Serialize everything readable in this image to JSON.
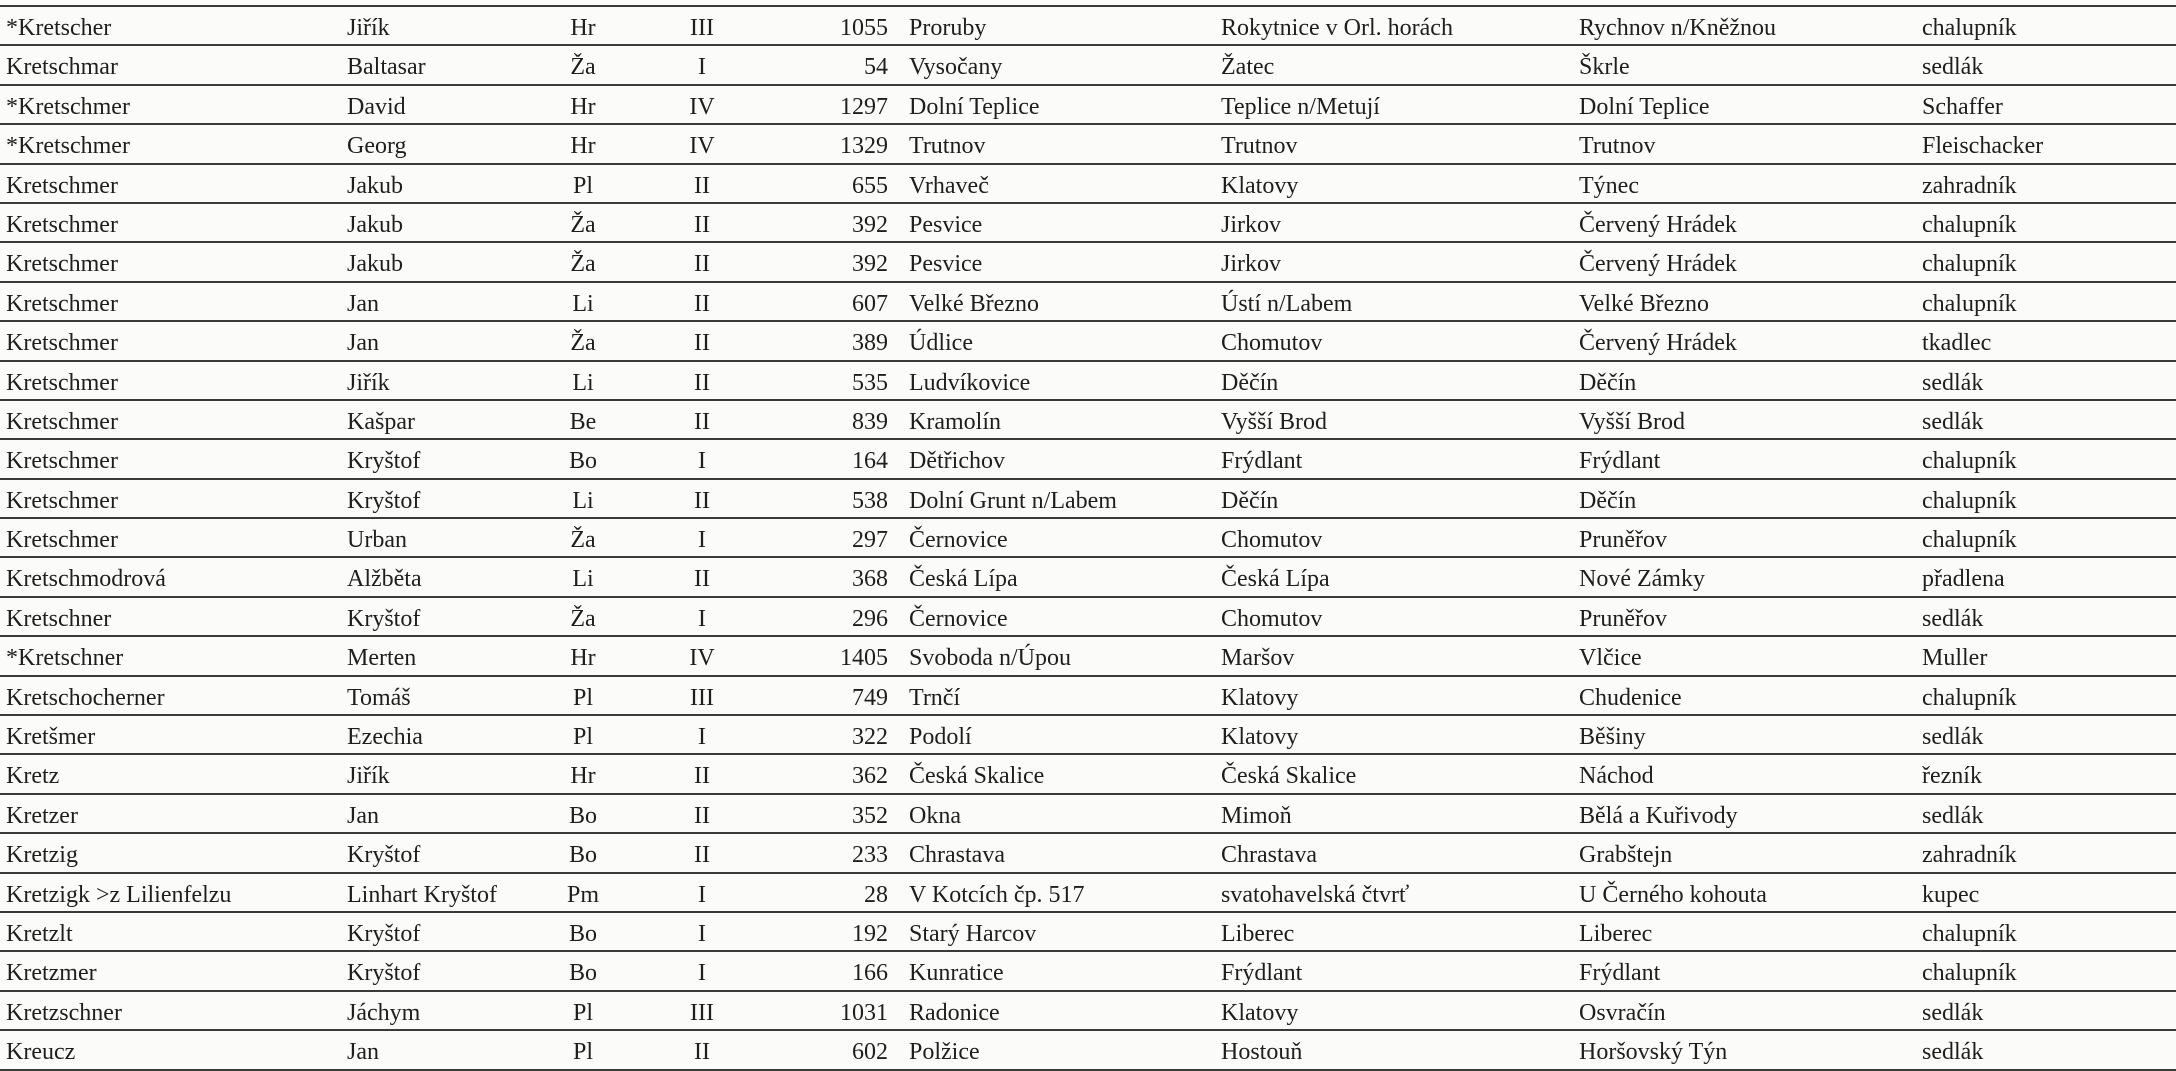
{
  "rows": [
    [
      "*Kretscher",
      "Jiřík",
      "Hr",
      "III",
      "1055",
      "Proruby",
      "Rokytnice v Orl. horách",
      "Rychnov n/Kněžnou",
      "chalupník"
    ],
    [
      "Kretschmar",
      "Baltasar",
      "Ža",
      "I",
      "54",
      "Vysočany",
      "Žatec",
      "Škrle",
      "sedlák"
    ],
    [
      "*Kretschmer",
      "David",
      "Hr",
      "IV",
      "1297",
      "Dolní Teplice",
      "Teplice n/Metují",
      "Dolní Teplice",
      "Schaffer"
    ],
    [
      "*Kretschmer",
      "Georg",
      "Hr",
      "IV",
      "1329",
      "Trutnov",
      "Trutnov",
      "Trutnov",
      "Fleischacker"
    ],
    [
      "Kretschmer",
      "Jakub",
      "Pl",
      "II",
      "655",
      "Vrhaveč",
      "Klatovy",
      "Týnec",
      "zahradník"
    ],
    [
      "Kretschmer",
      "Jakub",
      "Ža",
      "II",
      "392",
      "Pesvice",
      "Jirkov",
      "Červený Hrádek",
      "chalupník"
    ],
    [
      "Kretschmer",
      "Jakub",
      "Ža",
      "II",
      "392",
      "Pesvice",
      "Jirkov",
      "Červený Hrádek",
      "chalupník"
    ],
    [
      "Kretschmer",
      "Jan",
      "Li",
      "II",
      "607",
      "Velké Březno",
      "Ústí n/Labem",
      "Velké Březno",
      "chalupník"
    ],
    [
      "Kretschmer",
      "Jan",
      "Ža",
      "II",
      "389",
      "Údlice",
      "Chomutov",
      "Červený Hrádek",
      "tkadlec"
    ],
    [
      "Kretschmer",
      "Jiřík",
      "Li",
      "II",
      "535",
      "Ludvíkovice",
      "Děčín",
      "Děčín",
      "sedlák"
    ],
    [
      "Kretschmer",
      "Kašpar",
      "Be",
      "II",
      "839",
      "Kramolín",
      "Vyšší Brod",
      "Vyšší Brod",
      "sedlák"
    ],
    [
      "Kretschmer",
      "Kryštof",
      "Bo",
      "I",
      "164",
      "Dětřichov",
      "Frýdlant",
      "Frýdlant",
      "chalupník"
    ],
    [
      "Kretschmer",
      "Kryštof",
      "Li",
      "II",
      "538",
      "Dolní Grunt n/Labem",
      "Děčín",
      "Děčín",
      "chalupník"
    ],
    [
      "Kretschmer",
      "Urban",
      "Ža",
      "I",
      "297",
      "Černovice",
      "Chomutov",
      "Pruněřov",
      "chalupník"
    ],
    [
      "Kretschmodrová",
      "Alžběta",
      "Li",
      "II",
      "368",
      "Česká Lípa",
      "Česká Lípa",
      "Nové Zámky",
      "přadlena"
    ],
    [
      "Kretschner",
      "Kryštof",
      "Ža",
      "I",
      "296",
      "Černovice",
      "Chomutov",
      "Pruněřov",
      "sedlák"
    ],
    [
      "*Kretschner",
      "Merten",
      "Hr",
      "IV",
      "1405",
      "Svoboda n/Úpou",
      "Maršov",
      "Vlčice",
      "Muller"
    ],
    [
      "Kretschocherner",
      "Tomáš",
      "Pl",
      "III",
      "749",
      "Trnčí",
      "Klatovy",
      "Chudenice",
      "chalupník"
    ],
    [
      "Kretšmer",
      "Ezechia",
      "Pl",
      "I",
      "322",
      "Podolí",
      "Klatovy",
      "Běšiny",
      "sedlák"
    ],
    [
      "Kretz",
      "Jiřík",
      "Hr",
      "II",
      "362",
      "Česká Skalice",
      "Česká Skalice",
      "Náchod",
      "řezník"
    ],
    [
      "Kretzer",
      "Jan",
      "Bo",
      "II",
      "352",
      "Okna",
      "Mimoň",
      "Bělá a Kuřivody",
      "sedlák"
    ],
    [
      "Kretzig",
      "Kryštof",
      "Bo",
      "II",
      "233",
      "Chrastava",
      "Chrastava",
      "Grabštejn",
      "zahradník"
    ],
    [
      "Kretzigk >z Lilienfelzu",
      "Linhart Kryštof",
      "Pm",
      "I",
      "28",
      "V Kotcích čp. 517",
      "svatohavelská čtvrť",
      "U Černého kohouta",
      "kupec"
    ],
    [
      "Kretzlt",
      "Kryštof",
      "Bo",
      "I",
      "192",
      "Starý Harcov",
      "Liberec",
      "Liberec",
      "chalupník"
    ],
    [
      "Kretzmer",
      "Kryštof",
      "Bo",
      "I",
      "166",
      "Kunratice",
      "Frýdlant",
      "Frýdlant",
      "chalupník"
    ],
    [
      "Kretzschner",
      "Jáchym",
      "Pl",
      "III",
      "1031",
      "Radonice",
      "Klatovy",
      "Osvračín",
      "sedlák"
    ],
    [
      "Kreucz",
      "Jan",
      "Pl",
      "II",
      "602",
      "Polžice",
      "Hostouň",
      "Horšovský Týn",
      "sedlák"
    ]
  ]
}
